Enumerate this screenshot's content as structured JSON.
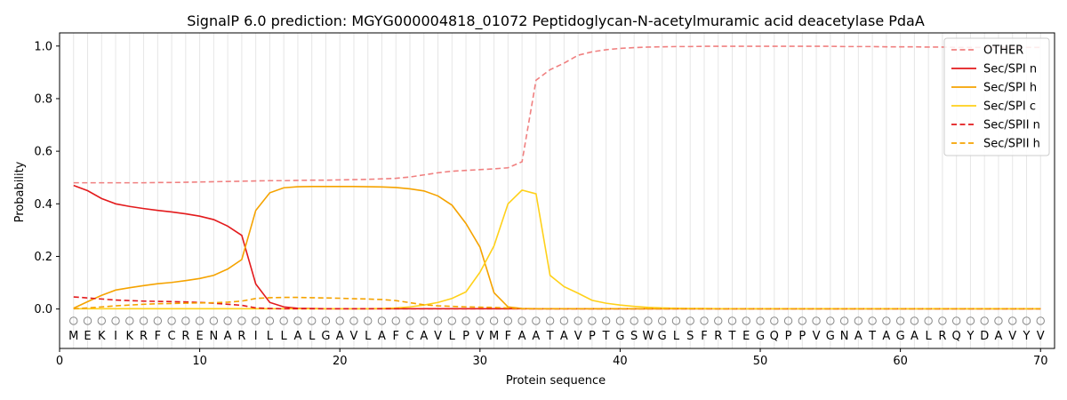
{
  "chart_data": {
    "type": "line",
    "title": "SignalP 6.0 prediction: MGYG000004818_01072 Peptidoglycan-N-acetylmuramic acid deacetylase PdaA",
    "xlabel": "Protein sequence",
    "ylabel": "Probability",
    "xlim": [
      0,
      71
    ],
    "ylim": [
      -0.15,
      1.05
    ],
    "xticks": [
      0,
      10,
      20,
      30,
      40,
      50,
      60,
      70
    ],
    "yticks": [
      0.0,
      0.2,
      0.4,
      0.6,
      0.8,
      1.0
    ],
    "ytick_labels": [
      "0.0",
      "0.2",
      "0.4",
      "0.6",
      "0.8",
      "1.0"
    ],
    "grid": "vertical lines at each residue",
    "legend_position": "top-right",
    "sequence": [
      "M",
      "E",
      "K",
      "I",
      "K",
      "R",
      "F",
      "C",
      "R",
      "E",
      "N",
      "A",
      "R",
      "I",
      "L",
      "L",
      "A",
      "L",
      "G",
      "A",
      "V",
      "L",
      "A",
      "F",
      "C",
      "A",
      "V",
      "L",
      "P",
      "V",
      "M",
      "F",
      "A",
      "A",
      "T",
      "A",
      "V",
      "P",
      "T",
      "G",
      "S",
      "W",
      "G",
      "L",
      "S",
      "F",
      "R",
      "T",
      "E",
      "G",
      "Q",
      "P",
      "P",
      "V",
      "G",
      "N",
      "A",
      "T",
      "A",
      "G",
      "A",
      "L",
      "R",
      "Q",
      "Y",
      "D",
      "A",
      "V",
      "Y",
      "V"
    ],
    "series": [
      {
        "name": "OTHER",
        "color": "#f08080",
        "dash": "dashed",
        "values": [
          0.48,
          0.48,
          0.48,
          0.48,
          0.48,
          0.48,
          0.481,
          0.481,
          0.482,
          0.483,
          0.484,
          0.485,
          0.486,
          0.487,
          0.488,
          0.488,
          0.489,
          0.49,
          0.49,
          0.491,
          0.492,
          0.493,
          0.495,
          0.497,
          0.502,
          0.51,
          0.518,
          0.524,
          0.527,
          0.53,
          0.533,
          0.537,
          0.56,
          0.87,
          0.91,
          0.935,
          0.965,
          0.978,
          0.986,
          0.991,
          0.994,
          0.996,
          0.997,
          0.998,
          0.998,
          0.999,
          0.999,
          0.999,
          0.999,
          0.999,
          0.999,
          0.999,
          0.999,
          0.999,
          0.999,
          0.998,
          0.998,
          0.998,
          0.997,
          0.997,
          0.997,
          0.996,
          0.996,
          0.995,
          0.995,
          0.995,
          0.995,
          0.995,
          0.995,
          0.995
        ]
      },
      {
        "name": "Sec/SPI n",
        "color": "#e31a1c",
        "dash": "solid",
        "values": [
          0.47,
          0.45,
          0.42,
          0.4,
          0.39,
          0.382,
          0.375,
          0.369,
          0.362,
          0.353,
          0.34,
          0.315,
          0.28,
          0.095,
          0.025,
          0.008,
          0.003,
          0.002,
          0.001,
          0.001,
          0.001,
          0.001,
          0.001,
          0.001,
          0.001,
          0.001,
          0.001,
          0.001,
          0.001,
          0.001,
          0.001,
          0.001,
          0.001,
          0.001,
          0.001,
          0.001,
          0.001,
          0.001,
          0.001,
          0.001,
          0.001,
          0.001,
          0.001,
          0.001,
          0.001,
          0.001,
          0.001,
          0.001,
          0.001,
          0.001,
          0.001,
          0.001,
          0.001,
          0.001,
          0.001,
          0.001,
          0.001,
          0.001,
          0.001,
          0.001,
          0.001,
          0.001,
          0.001,
          0.001,
          0.001,
          0.001,
          0.001,
          0.001,
          0.001,
          0.001
        ]
      },
      {
        "name": "Sec/SPI h",
        "color": "#f5a300",
        "dash": "solid",
        "values": [
          0.003,
          0.028,
          0.052,
          0.072,
          0.081,
          0.089,
          0.096,
          0.101,
          0.108,
          0.116,
          0.128,
          0.152,
          0.188,
          0.375,
          0.442,
          0.461,
          0.465,
          0.466,
          0.466,
          0.466,
          0.466,
          0.465,
          0.464,
          0.462,
          0.457,
          0.449,
          0.43,
          0.395,
          0.325,
          0.235,
          0.062,
          0.008,
          0.002,
          0.001,
          0.001,
          0.001,
          0.001,
          0.001,
          0.001,
          0.001,
          0.001,
          0.001,
          0.001,
          0.001,
          0.001,
          0.001,
          0.001,
          0.001,
          0.001,
          0.001,
          0.001,
          0.001,
          0.001,
          0.001,
          0.001,
          0.001,
          0.001,
          0.001,
          0.001,
          0.001,
          0.001,
          0.001,
          0.001,
          0.001,
          0.001,
          0.001,
          0.001,
          0.001,
          0.001,
          0.001
        ]
      },
      {
        "name": "Sec/SPI c",
        "color": "#ffd11a",
        "dash": "solid",
        "values": [
          0.001,
          0.001,
          0.001,
          0.001,
          0.001,
          0.001,
          0.001,
          0.001,
          0.001,
          0.001,
          0.001,
          0.001,
          0.001,
          0.001,
          0.001,
          0.001,
          0.001,
          0.001,
          0.001,
          0.001,
          0.001,
          0.001,
          0.002,
          0.004,
          0.008,
          0.015,
          0.025,
          0.04,
          0.065,
          0.14,
          0.24,
          0.4,
          0.452,
          0.438,
          0.128,
          0.085,
          0.06,
          0.033,
          0.022,
          0.015,
          0.01,
          0.006,
          0.004,
          0.003,
          0.002,
          0.002,
          0.001,
          0.001,
          0.001,
          0.001,
          0.001,
          0.001,
          0.001,
          0.001,
          0.001,
          0.001,
          0.001,
          0.001,
          0.001,
          0.001,
          0.001,
          0.001,
          0.001,
          0.001,
          0.001,
          0.001,
          0.001,
          0.001,
          0.001,
          0.001
        ]
      },
      {
        "name": "Sec/SPII n",
        "color": "#e31a1c",
        "dash": "dashed",
        "values": [
          0.046,
          0.042,
          0.038,
          0.034,
          0.032,
          0.03,
          0.029,
          0.028,
          0.027,
          0.025,
          0.022,
          0.018,
          0.014,
          0.004,
          0.002,
          0.001,
          0.001,
          0.001,
          0.001,
          0.001,
          0.001,
          0.001,
          0.001,
          0.001,
          0.001,
          0.001,
          0.001,
          0.001,
          0.001,
          0.001,
          0.001,
          0.001,
          0.001,
          0.001,
          0.001,
          0.001,
          0.001,
          0.001,
          0.001,
          0.001,
          0.001,
          0.001,
          0.001,
          0.001,
          0.001,
          0.001,
          0.001,
          0.001,
          0.001,
          0.001,
          0.001,
          0.001,
          0.001,
          0.001,
          0.001,
          0.001,
          0.001,
          0.001,
          0.001,
          0.001,
          0.001,
          0.001,
          0.001,
          0.001,
          0.001,
          0.001,
          0.001,
          0.001,
          0.001,
          0.001
        ]
      },
      {
        "name": "Sec/SPII h",
        "color": "#f5a300",
        "dash": "dashed",
        "values": [
          0.001,
          0.004,
          0.008,
          0.012,
          0.015,
          0.018,
          0.02,
          0.021,
          0.022,
          0.023,
          0.024,
          0.026,
          0.03,
          0.04,
          0.043,
          0.044,
          0.044,
          0.043,
          0.042,
          0.041,
          0.039,
          0.038,
          0.036,
          0.032,
          0.024,
          0.016,
          0.012,
          0.01,
          0.008,
          0.007,
          0.006,
          0.004,
          0.001,
          0.001,
          0.001,
          0.001,
          0.001,
          0.001,
          0.001,
          0.001,
          0.001,
          0.001,
          0.001,
          0.001,
          0.001,
          0.001,
          0.001,
          0.001,
          0.001,
          0.001,
          0.001,
          0.001,
          0.001,
          0.001,
          0.001,
          0.001,
          0.001,
          0.001,
          0.001,
          0.001,
          0.001,
          0.001,
          0.001,
          0.001,
          0.001,
          0.001,
          0.001,
          0.001,
          0.001,
          0.001
        ]
      }
    ]
  }
}
